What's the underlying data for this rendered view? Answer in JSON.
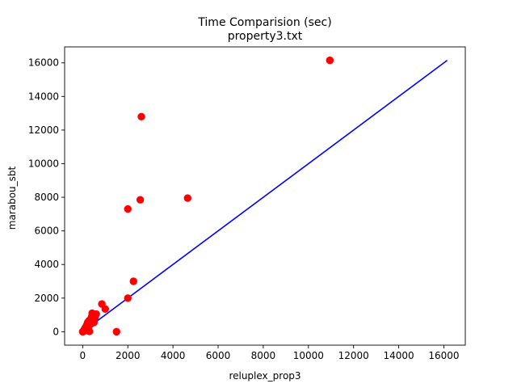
{
  "chart_data": {
    "type": "scatter",
    "title": "Time Comparision (sec)",
    "subtitle": "property3.txt",
    "xlabel": "reluplex_prop3",
    "ylabel": "marabou_sbt",
    "xlim": [
      -800,
      16950
    ],
    "ylim": [
      -800,
      16950
    ],
    "xticks": [
      0,
      2000,
      4000,
      6000,
      8000,
      10000,
      12000,
      14000,
      16000
    ],
    "yticks": [
      0,
      2000,
      4000,
      6000,
      8000,
      10000,
      12000,
      14000,
      16000
    ],
    "grid": false,
    "point_color": "#ff0000",
    "line_color": "#0000ff",
    "points": [
      {
        "x": 0,
        "y": 0
      },
      {
        "x": 20,
        "y": 10
      },
      {
        "x": 50,
        "y": 60
      },
      {
        "x": 80,
        "y": 150
      },
      {
        "x": 100,
        "y": 50
      },
      {
        "x": 120,
        "y": 250
      },
      {
        "x": 150,
        "y": 120
      },
      {
        "x": 180,
        "y": 400
      },
      {
        "x": 200,
        "y": 300
      },
      {
        "x": 220,
        "y": 550
      },
      {
        "x": 250,
        "y": 200
      },
      {
        "x": 280,
        "y": 650
      },
      {
        "x": 300,
        "y": 20
      },
      {
        "x": 320,
        "y": 700
      },
      {
        "x": 350,
        "y": 450
      },
      {
        "x": 380,
        "y": 800
      },
      {
        "x": 400,
        "y": 900
      },
      {
        "x": 420,
        "y": 1100
      },
      {
        "x": 450,
        "y": 700
      },
      {
        "x": 480,
        "y": 950
      },
      {
        "x": 500,
        "y": 550
      },
      {
        "x": 520,
        "y": 1000
      },
      {
        "x": 550,
        "y": 850
      },
      {
        "x": 600,
        "y": 1050
      },
      {
        "x": 850,
        "y": 1650
      },
      {
        "x": 1000,
        "y": 1350
      },
      {
        "x": 1500,
        "y": 0
      },
      {
        "x": 2000,
        "y": 2000
      },
      {
        "x": 2000,
        "y": 7300
      },
      {
        "x": 2250,
        "y": 3000
      },
      {
        "x": 2550,
        "y": 7850
      },
      {
        "x": 2600,
        "y": 12800
      },
      {
        "x": 4650,
        "y": 7950
      },
      {
        "x": 10950,
        "y": 16150
      }
    ],
    "reference_line": {
      "x": [
        0,
        16150
      ],
      "y": [
        0,
        16150
      ]
    }
  }
}
